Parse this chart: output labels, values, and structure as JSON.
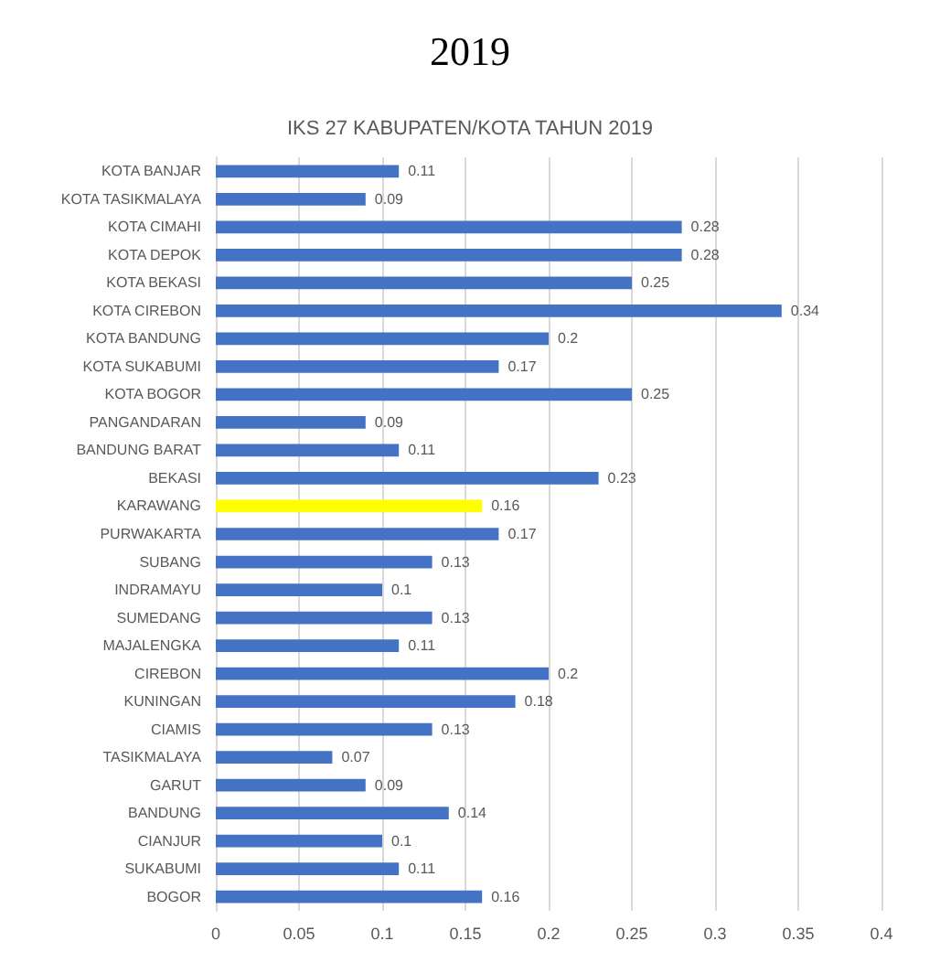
{
  "chart_data": {
    "type": "bar",
    "orientation": "horizontal",
    "title": "2019",
    "subtitle": "IKS 27 KABUPATEN/KOTA TAHUN 2019",
    "categories": [
      "KOTA BANJAR",
      "KOTA TASIKMALAYA",
      "KOTA CIMAHI",
      "KOTA DEPOK",
      "KOTA BEKASI",
      "KOTA CIREBON",
      "KOTA BANDUNG",
      "KOTA SUKABUMI",
      "KOTA BOGOR",
      "PANGANDARAN",
      "BANDUNG BARAT",
      "BEKASI",
      "KARAWANG",
      "PURWAKARTA",
      "SUBANG",
      "INDRAMAYU",
      "SUMEDANG",
      "MAJALENGKA",
      "CIREBON",
      "KUNINGAN",
      "CIAMIS",
      "TASIKMALAYA",
      "GARUT",
      "BANDUNG",
      "CIANJUR",
      "SUKABUMI",
      "BOGOR"
    ],
    "values": [
      0.11,
      0.09,
      0.28,
      0.28,
      0.25,
      0.34,
      0.2,
      0.17,
      0.25,
      0.09,
      0.11,
      0.23,
      0.16,
      0.17,
      0.13,
      0.1,
      0.13,
      0.11,
      0.2,
      0.18,
      0.13,
      0.07,
      0.09,
      0.14,
      0.1,
      0.11,
      0.16
    ],
    "colors": [
      "#4472c4",
      "#4472c4",
      "#4472c4",
      "#4472c4",
      "#4472c4",
      "#4472c4",
      "#4472c4",
      "#4472c4",
      "#4472c4",
      "#4472c4",
      "#4472c4",
      "#4472c4",
      "#ffff00",
      "#4472c4",
      "#4472c4",
      "#4472c4",
      "#4472c4",
      "#4472c4",
      "#4472c4",
      "#4472c4",
      "#4472c4",
      "#4472c4",
      "#4472c4",
      "#4472c4",
      "#4472c4",
      "#4472c4",
      "#4472c4"
    ],
    "xlim": [
      0,
      0.4
    ],
    "xticks": [
      0,
      0.05,
      0.1,
      0.15,
      0.2,
      0.25,
      0.3,
      0.35,
      0.4
    ],
    "grid": "x",
    "data_labels": true
  }
}
